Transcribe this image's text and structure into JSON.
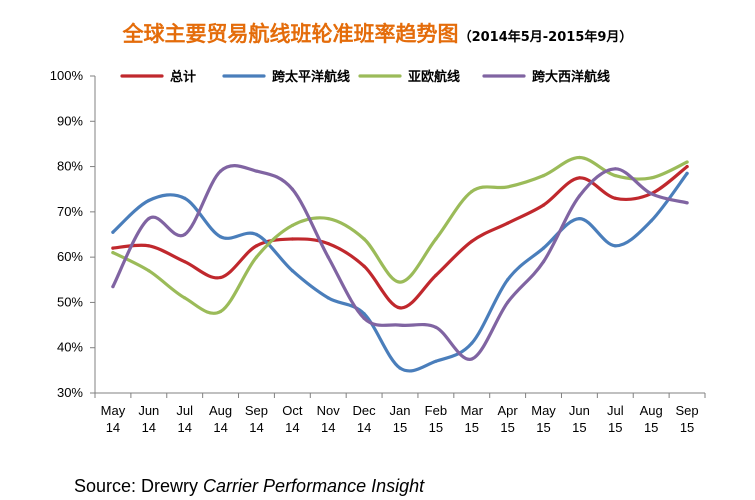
{
  "header": {
    "title": "全球主要贸易航线班轮准班率趋势图",
    "subtitle": "（2014年5月-2015年9月）"
  },
  "footer": {
    "source_prefix": "Source: Drewry ",
    "source_italic": "Carrier Performance Insight"
  },
  "chart_data": {
    "type": "line",
    "title": "全球主要贸易航线班轮准班率趋势图",
    "subtitle": "（2014年5月-2015年9月）",
    "xlabel": "",
    "ylabel": "",
    "ylim": [
      30,
      100
    ],
    "yticks": [
      "30%",
      "40%",
      "50%",
      "60%",
      "70%",
      "80%",
      "90%",
      "100%"
    ],
    "ytick_values": [
      30,
      40,
      50,
      60,
      70,
      80,
      90,
      100
    ],
    "categories": [
      [
        "May",
        "14"
      ],
      [
        "Jun",
        "14"
      ],
      [
        "Jul",
        "14"
      ],
      [
        "Aug",
        "14"
      ],
      [
        "Sep",
        "14"
      ],
      [
        "Oct",
        "14"
      ],
      [
        "Nov",
        "14"
      ],
      [
        "Dec",
        "14"
      ],
      [
        "Jan",
        "15"
      ],
      [
        "Feb",
        "15"
      ],
      [
        "Mar",
        "15"
      ],
      [
        "Apr",
        "15"
      ],
      [
        "May",
        "15"
      ],
      [
        "Jun",
        "15"
      ],
      [
        "Jul",
        "15"
      ],
      [
        "Aug",
        "15"
      ],
      [
        "Sep",
        "15"
      ]
    ],
    "legend_position": "top",
    "grid": false,
    "smooth": true,
    "series": [
      {
        "name": "总计",
        "color": "#c0282d",
        "values": [
          62,
          62.5,
          59,
          55.5,
          62.5,
          64,
          63,
          58,
          48.8,
          56,
          63.5,
          67.5,
          71.5,
          77.5,
          73,
          74,
          80
        ]
      },
      {
        "name": "跨太平洋航线",
        "color": "#4a7ebb",
        "values": [
          65.5,
          72.5,
          73,
          64.5,
          65,
          57,
          51,
          47.5,
          35.5,
          37,
          41,
          55,
          62,
          68.5,
          62.5,
          68,
          78.5
        ]
      },
      {
        "name": "亚欧航线",
        "color": "#9bbb59",
        "values": [
          61,
          57,
          51,
          48,
          60,
          67,
          68.5,
          64,
          54.5,
          64,
          74.5,
          75.5,
          78,
          82,
          78,
          77.5,
          81
        ]
      },
      {
        "name": "跨大西洋航线",
        "color": "#8064a2",
        "values": [
          53.5,
          68.5,
          65,
          79,
          79,
          75,
          60,
          46.5,
          45,
          44.5,
          37.5,
          50,
          59,
          73.5,
          79.5,
          74,
          72
        ]
      }
    ]
  }
}
